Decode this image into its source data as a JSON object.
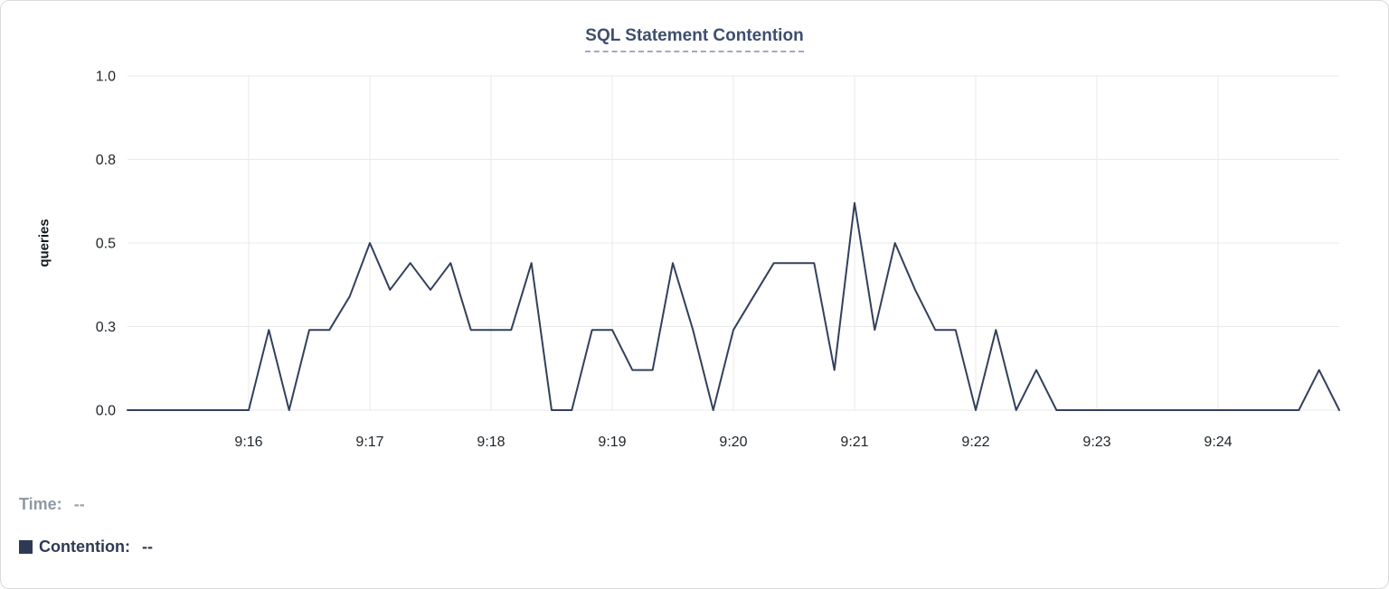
{
  "header": {
    "title": "SQL Statement Contention"
  },
  "legend": {
    "time_label": "Time:",
    "time_value": "--",
    "contention_label": "Contention:",
    "contention_value": "--",
    "contention_color": "#2e3a54"
  },
  "chart_data": {
    "type": "line",
    "title": "SQL Statement Contention",
    "xlabel": "",
    "ylabel": "queries",
    "ylim": [
      0,
      1
    ],
    "grid": true,
    "legend_position": "bottom-left",
    "line_color": "#33405c",
    "gridline_color": "#e9e9e9",
    "x_interval_seconds": 10,
    "x": [
      "9:15:00",
      "9:15:10",
      "9:15:20",
      "9:15:30",
      "9:15:40",
      "9:15:50",
      "9:16:00",
      "9:16:10",
      "9:16:20",
      "9:16:30",
      "9:16:40",
      "9:16:50",
      "9:17:00",
      "9:17:10",
      "9:17:20",
      "9:17:30",
      "9:17:40",
      "9:17:50",
      "9:18:00",
      "9:18:10",
      "9:18:20",
      "9:18:30",
      "9:18:40",
      "9:18:50",
      "9:19:00",
      "9:19:10",
      "9:19:20",
      "9:19:30",
      "9:19:40",
      "9:19:50",
      "9:20:00",
      "9:20:10",
      "9:20:20",
      "9:20:30",
      "9:20:40",
      "9:20:50",
      "9:21:00",
      "9:21:10",
      "9:21:20",
      "9:21:30",
      "9:21:40",
      "9:21:50",
      "9:22:00",
      "9:22:10",
      "9:22:20",
      "9:22:30",
      "9:22:40",
      "9:22:50",
      "9:23:00",
      "9:23:10",
      "9:23:20",
      "9:23:30",
      "9:23:40",
      "9:23:50",
      "9:24:00",
      "9:24:10",
      "9:24:20",
      "9:24:30",
      "9:24:40",
      "9:24:50",
      "9:25:00"
    ],
    "series": [
      {
        "name": "Contention",
        "values": [
          0,
          0,
          0,
          0,
          0,
          0,
          0,
          0.24,
          0,
          0.24,
          0.24,
          0.34,
          0.5,
          0.36,
          0.44,
          0.36,
          0.44,
          0.24,
          0.24,
          0.24,
          0.44,
          0,
          0,
          0.24,
          0.24,
          0.12,
          0.12,
          0.44,
          0.24,
          0,
          0.24,
          0.34,
          0.44,
          0.44,
          0.44,
          0.12,
          0.62,
          0.24,
          0.5,
          0.36,
          0.24,
          0.24,
          0,
          0.24,
          0,
          0.12,
          0,
          0,
          0,
          0,
          0,
          0,
          0,
          0,
          0,
          0,
          0,
          0,
          0,
          0.12,
          0
        ]
      }
    ],
    "x_ticks": [
      {
        "label": "9:16",
        "seconds": 60
      },
      {
        "label": "9:17",
        "seconds": 120
      },
      {
        "label": "9:18",
        "seconds": 180
      },
      {
        "label": "9:19",
        "seconds": 240
      },
      {
        "label": "9:20",
        "seconds": 300
      },
      {
        "label": "9:21",
        "seconds": 360
      },
      {
        "label": "9:22",
        "seconds": 420
      },
      {
        "label": "9:23",
        "seconds": 480
      },
      {
        "label": "9:24",
        "seconds": 540
      }
    ],
    "y_ticks": [
      {
        "label": "0.0",
        "value": 0
      },
      {
        "label": "0.3",
        "value": 0.25
      },
      {
        "label": "0.5",
        "value": 0.5
      },
      {
        "label": "0.8",
        "value": 0.75
      },
      {
        "label": "1.0",
        "value": 1.0
      }
    ]
  }
}
